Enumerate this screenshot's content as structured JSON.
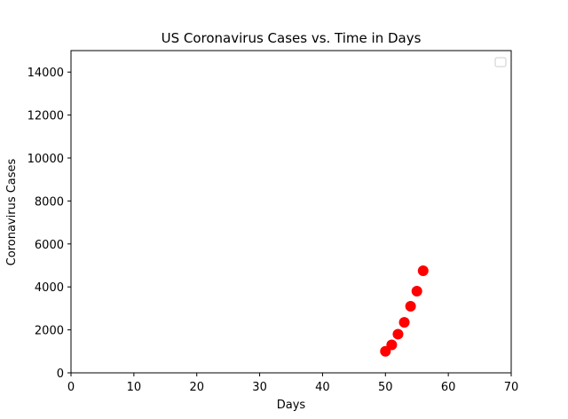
{
  "chart_data": {
    "type": "scatter",
    "title": "US Coronavirus Cases vs. Time in Days",
    "xlabel": "Days",
    "ylabel": "Coronavirus Cases",
    "xlim": [
      0,
      70
    ],
    "ylim": [
      0,
      15000
    ],
    "xticks": [
      0,
      10,
      20,
      30,
      40,
      50,
      60,
      70
    ],
    "yticks": [
      0,
      2000,
      4000,
      6000,
      8000,
      10000,
      12000,
      14000
    ],
    "grid": false,
    "legend": {
      "placement": "top-right",
      "entries": []
    },
    "series": [
      {
        "color": "#ff0000",
        "marker": "circle",
        "points": [
          {
            "x": 50,
            "y": 1000
          },
          {
            "x": 51,
            "y": 1300
          },
          {
            "x": 52,
            "y": 1800
          },
          {
            "x": 53,
            "y": 2350
          },
          {
            "x": 54,
            "y": 3100
          },
          {
            "x": 55,
            "y": 3800
          },
          {
            "x": 56,
            "y": 4750
          }
        ]
      }
    ]
  }
}
